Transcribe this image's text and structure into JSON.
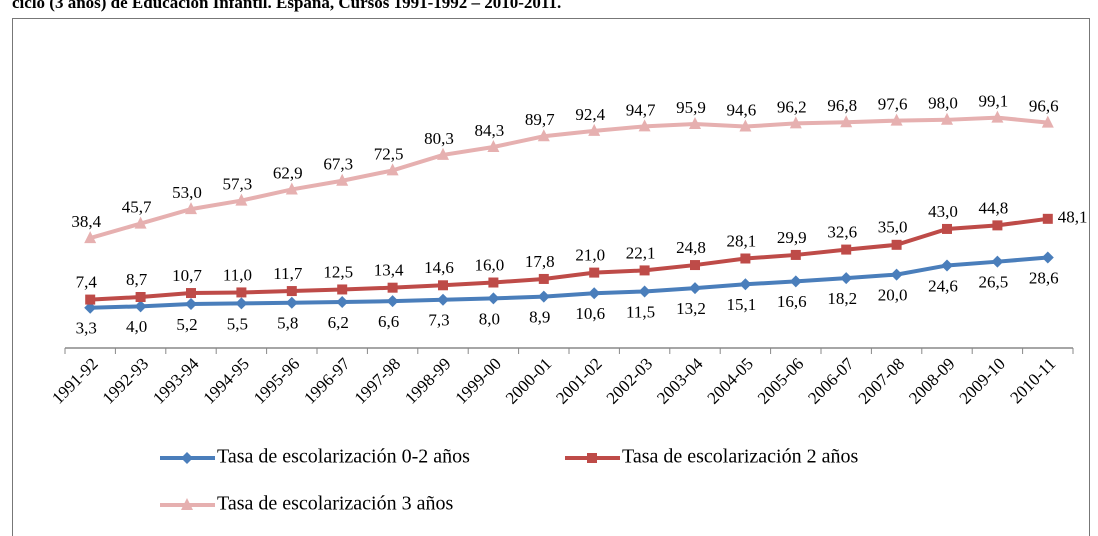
{
  "chart_data": {
    "type": "line",
    "title": "ciclo (3 años) de Educación Infantil. España, Cursos 1991-1992 – 2010-2011.",
    "categories": [
      "1991-92",
      "1992-93",
      "1993-94",
      "1994-95",
      "1995-96",
      "1996-97",
      "1997-98",
      "1998-99",
      "1999-00",
      "2000-01",
      "2001-02",
      "2002-03",
      "2003-04",
      "2004-05",
      "2005-06",
      "2006-07",
      "2007-08",
      "2008-09",
      "2009-10",
      "2010-11"
    ],
    "ylim": [
      -17,
      110
    ],
    "series": [
      {
        "name": "Tasa de escolarización 0-2 años",
        "color": "#4a7ebb",
        "marker": "diamond",
        "values": [
          3.3,
          4.0,
          5.2,
          5.5,
          5.8,
          6.2,
          6.6,
          7.3,
          8.0,
          8.9,
          10.6,
          11.5,
          13.2,
          15.1,
          16.6,
          18.2,
          20.0,
          24.6,
          26.5,
          28.6
        ],
        "value_labels": [
          "3,3",
          "4,0",
          "5,2",
          "5,5",
          "5,8",
          "6,2",
          "6,6",
          "7,3",
          "8,0",
          "8,9",
          "10,6",
          "11,5",
          "13,2",
          "15,1",
          "16,6",
          "18,2",
          "20,0",
          "24,6",
          "26,5",
          "28,6"
        ]
      },
      {
        "name": "Tasa de escolarización 2 años",
        "color": "#be4b48",
        "marker": "square",
        "values": [
          7.4,
          8.7,
          10.7,
          11.0,
          11.7,
          12.5,
          13.4,
          14.6,
          16.0,
          17.8,
          21.0,
          22.1,
          24.8,
          28.1,
          29.9,
          32.6,
          35.0,
          43.0,
          44.8,
          48.1
        ],
        "value_labels": [
          "7,4",
          "8,7",
          "10,7",
          "11,0",
          "11,7",
          "12,5",
          "13,4",
          "14,6",
          "16,0",
          "17,8",
          "21,0",
          "22,1",
          "24,8",
          "28,1",
          "29,9",
          "32,6",
          "35,0",
          "43,0",
          "44,8",
          "48,1"
        ]
      },
      {
        "name": "Tasa de escolarización 3 años",
        "color": "#e6b0b0",
        "marker": "triangle",
        "values": [
          38.4,
          45.7,
          53.0,
          57.3,
          62.9,
          67.3,
          72.5,
          80.3,
          84.3,
          89.7,
          92.4,
          94.7,
          95.9,
          94.6,
          96.2,
          96.8,
          97.6,
          98.0,
          99.1,
          96.6
        ],
        "value_labels": [
          "38,4",
          "45,7",
          "53,0",
          "57,3",
          "62,9",
          "67,3",
          "72,5",
          "80,3",
          "84,3",
          "89,7",
          "92,4",
          "94,7",
          "95,9",
          "94,6",
          "96,2",
          "96,8",
          "97,6",
          "98,0",
          "99,1",
          "96,6"
        ]
      }
    ]
  }
}
